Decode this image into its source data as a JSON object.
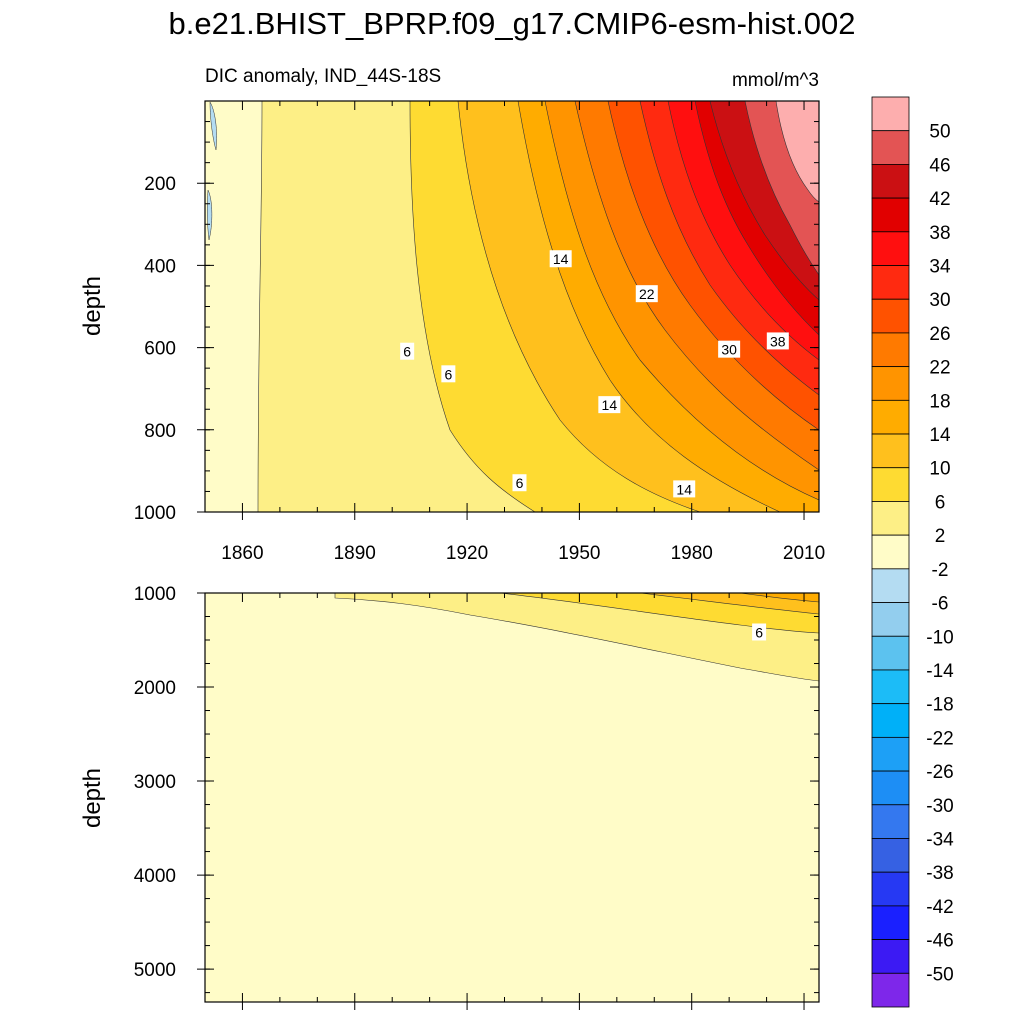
{
  "chart_data": [
    {
      "type": "heatmap",
      "title": "b.e21.BHIST_BPRP.f09_g17.CMIP6-esm-hist.002",
      "subtitle_left": "DIC anomaly, IND_44S-18S",
      "subtitle_right": "mmol/m^3",
      "xlabel": "",
      "ylabel": "depth",
      "xlim": [
        1850,
        2014
      ],
      "ylim": [
        0,
        1000
      ],
      "y_inverted": true,
      "x_ticks": [
        "1860",
        "1890",
        "1920",
        "1950",
        "1980",
        "2010"
      ],
      "x_tick_values": [
        1860,
        1890,
        1920,
        1950,
        1980,
        2010
      ],
      "y_ticks": [
        "200",
        "400",
        "600",
        "800",
        "1000"
      ],
      "y_tick_values": [
        200,
        400,
        600,
        800,
        1000
      ],
      "contour_labels": [
        {
          "text": "14",
          "year": 1945,
          "depth": 385
        },
        {
          "text": "22",
          "year": 1968,
          "depth": 470
        },
        {
          "text": "6",
          "year": 1904,
          "depth": 610
        },
        {
          "text": "6",
          "year": 1915,
          "depth": 665
        },
        {
          "text": "30",
          "year": 1990,
          "depth": 605
        },
        {
          "text": "38",
          "year": 2003,
          "depth": 585
        },
        {
          "text": "14",
          "year": 1958,
          "depth": 740
        },
        {
          "text": "6",
          "year": 1934,
          "depth": 930
        },
        {
          "text": "14",
          "year": 1978,
          "depth": 945
        }
      ],
      "surface_anomaly_by_year": {
        "years": [
          1850,
          1890,
          1910,
          1930,
          1950,
          1970,
          1990,
          2000,
          2014
        ],
        "values": [
          0,
          1,
          5,
          11,
          17,
          26,
          40,
          47,
          52
        ]
      }
    },
    {
      "type": "heatmap",
      "title": "",
      "xlabel": "",
      "ylabel": "depth",
      "xlim": [
        1850,
        2014
      ],
      "ylim": [
        1000,
        5350
      ],
      "y_inverted": true,
      "y_ticks": [
        "1000",
        "2000",
        "3000",
        "4000",
        "5000"
      ],
      "y_tick_values": [
        1000,
        2000,
        3000,
        4000,
        5000
      ],
      "contour_labels": [
        {
          "text": "6",
          "year": 1998,
          "depth": 1420
        }
      ]
    }
  ],
  "colorbar": {
    "labels": [
      "50",
      "46",
      "42",
      "38",
      "34",
      "30",
      "26",
      "22",
      "18",
      "14",
      "10",
      "6",
      "2",
      "-2",
      "-6",
      "-10",
      "-14",
      "-18",
      "-22",
      "-26",
      "-30",
      "-34",
      "-38",
      "-42",
      "-46",
      "-50"
    ],
    "colors": [
      "#fdaeae",
      "#e35454",
      "#cb1013",
      "#e10000",
      "#ff0f0f",
      "#ff2a10",
      "#ff5200",
      "#ff7a00",
      "#ff9400",
      "#ffac00",
      "#ffc01d",
      "#fedb32",
      "#fdef86",
      "#fffcc8",
      "#b4dcf2",
      "#93ceee",
      "#5cc2ef",
      "#1cbcf7",
      "#00b0f8",
      "#1da0f6",
      "#1d8ef5",
      "#3478ef",
      "#3661e3",
      "#2639f3",
      "#1a20ff",
      "#3c1af3",
      "#7e27ea"
    ]
  }
}
